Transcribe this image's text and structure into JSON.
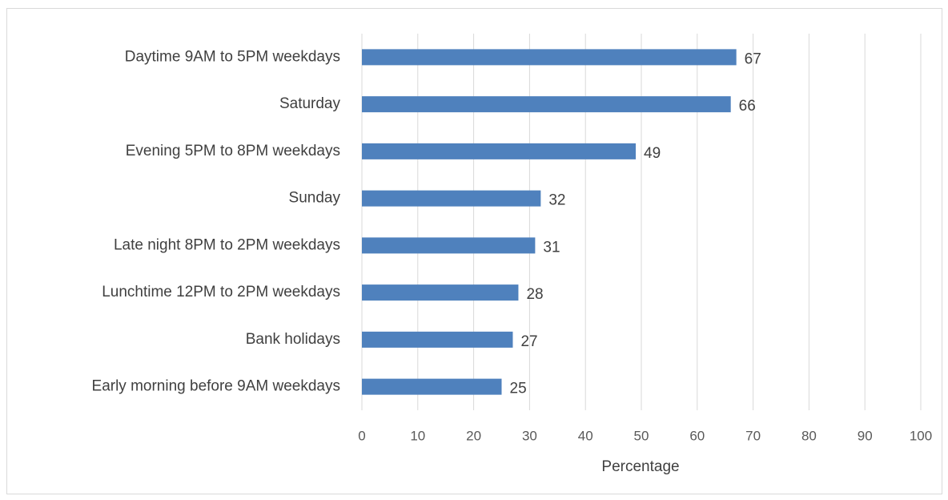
{
  "chart_data": {
    "type": "bar",
    "orientation": "horizontal",
    "categories": [
      "Daytime 9AM to 5PM weekdays",
      "Saturday",
      "Evening 5PM to 8PM weekdays",
      "Sunday",
      "Late night 8PM to 2PM weekdays",
      "Lunchtime 12PM to 2PM weekdays",
      "Bank holidays",
      "Early morning before 9AM weekdays"
    ],
    "values": [
      67,
      66,
      49,
      32,
      31,
      28,
      27,
      25
    ],
    "color": "#4f81bd",
    "xlabel": "Percentage",
    "xlim": [
      0,
      100
    ],
    "xticks": [
      0,
      10,
      20,
      30,
      40,
      50,
      60,
      70,
      80,
      90,
      100
    ],
    "grid": true,
    "data_labels": true
  }
}
